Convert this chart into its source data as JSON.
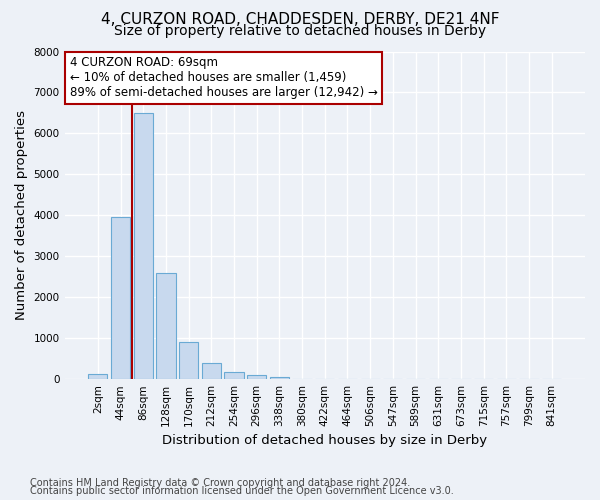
{
  "title_line1": "4, CURZON ROAD, CHADDESDEN, DERBY, DE21 4NF",
  "title_line2": "Size of property relative to detached houses in Derby",
  "xlabel": "Distribution of detached houses by size in Derby",
  "ylabel": "Number of detached properties",
  "bar_labels": [
    "2sqm",
    "44sqm",
    "86sqm",
    "128sqm",
    "170sqm",
    "212sqm",
    "254sqm",
    "296sqm",
    "338sqm",
    "380sqm",
    "422sqm",
    "464sqm",
    "506sqm",
    "547sqm",
    "589sqm",
    "631sqm",
    "673sqm",
    "715sqm",
    "757sqm",
    "799sqm",
    "841sqm"
  ],
  "bar_values": [
    130,
    3950,
    6500,
    2600,
    900,
    400,
    170,
    100,
    60,
    0,
    0,
    0,
    0,
    0,
    0,
    0,
    0,
    0,
    0,
    0,
    0
  ],
  "bar_color": "#c8d9ee",
  "bar_edge_color": "#6aaad4",
  "vline_x": 1.5,
  "vline_color": "#aa0000",
  "annotation_text": "4 CURZON ROAD: 69sqm\n← 10% of detached houses are smaller (1,459)\n89% of semi-detached houses are larger (12,942) →",
  "annotation_box_color": "#ffffff",
  "annotation_box_edge": "#aa0000",
  "ylim": [
    0,
    8000
  ],
  "yticks": [
    0,
    1000,
    2000,
    3000,
    4000,
    5000,
    6000,
    7000,
    8000
  ],
  "footnote_line1": "Contains HM Land Registry data © Crown copyright and database right 2024.",
  "footnote_line2": "Contains public sector information licensed under the Open Government Licence v3.0.",
  "background_color": "#edf1f7",
  "plot_bg_color": "#edf1f7",
  "grid_color": "#ffffff",
  "title_fontsize": 11,
  "subtitle_fontsize": 10,
  "axis_label_fontsize": 9.5,
  "tick_fontsize": 7.5,
  "annotation_fontsize": 8.5,
  "footnote_fontsize": 7
}
